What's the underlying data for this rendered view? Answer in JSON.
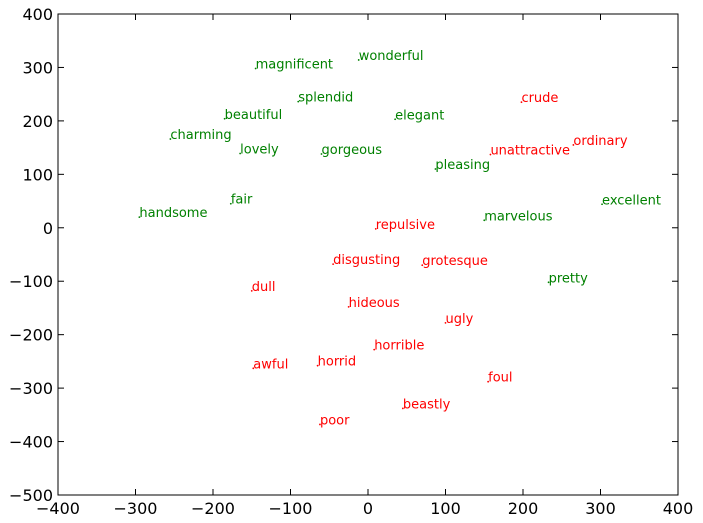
{
  "chart_data": {
    "type": "scatter",
    "title": "",
    "xlabel": "",
    "ylabel": "",
    "xlim": [
      -400,
      400
    ],
    "ylim": [
      -500,
      400
    ],
    "xticks": [
      -400,
      -300,
      -200,
      -100,
      0,
      100,
      200,
      300,
      400
    ],
    "yticks": [
      -500,
      -400,
      -300,
      -200,
      -100,
      0,
      100,
      200,
      300,
      400
    ],
    "grid": false,
    "colors": {
      "positive": "#008000",
      "negative": "#ff0000"
    },
    "points": [
      {
        "label": "wonderful",
        "x": -12,
        "y": 314,
        "group": "positive"
      },
      {
        "label": "magnificent",
        "x": -145,
        "y": 298,
        "group": "positive"
      },
      {
        "label": "splendid",
        "x": -90,
        "y": 236,
        "group": "positive"
      },
      {
        "label": "beautiful",
        "x": -185,
        "y": 204,
        "group": "positive"
      },
      {
        "label": "elegant",
        "x": 35,
        "y": 203,
        "group": "positive"
      },
      {
        "label": "charming",
        "x": -255,
        "y": 166,
        "group": "positive"
      },
      {
        "label": "lovely",
        "x": -165,
        "y": 139,
        "group": "positive"
      },
      {
        "label": "gorgeous",
        "x": -60,
        "y": 138,
        "group": "positive"
      },
      {
        "label": "pleasing",
        "x": 87,
        "y": 110,
        "group": "positive"
      },
      {
        "label": "fair",
        "x": -177,
        "y": 45,
        "group": "positive"
      },
      {
        "label": "handsome",
        "x": -295,
        "y": 20,
        "group": "positive"
      },
      {
        "label": "marvelous",
        "x": 150,
        "y": 14,
        "group": "positive"
      },
      {
        "label": "excellent",
        "x": 302,
        "y": 44,
        "group": "positive"
      },
      {
        "label": "pretty",
        "x": 233,
        "y": -102,
        "group": "positive"
      },
      {
        "label": "crude",
        "x": 198,
        "y": 235,
        "group": "negative"
      },
      {
        "label": "ordinary",
        "x": 265,
        "y": 155,
        "group": "negative"
      },
      {
        "label": "unattractive",
        "x": 158,
        "y": 137,
        "group": "negative"
      },
      {
        "label": "repulsive",
        "x": 10,
        "y": -2,
        "group": "negative"
      },
      {
        "label": "disgusting",
        "x": -45,
        "y": -68,
        "group": "negative"
      },
      {
        "label": "grotesque",
        "x": 70,
        "y": -70,
        "group": "negative"
      },
      {
        "label": "dull",
        "x": -150,
        "y": -118,
        "group": "negative"
      },
      {
        "label": "hideous",
        "x": -25,
        "y": -148,
        "group": "negative"
      },
      {
        "label": "ugly",
        "x": 100,
        "y": -178,
        "group": "negative"
      },
      {
        "label": "horrible",
        "x": 8,
        "y": -228,
        "group": "negative"
      },
      {
        "label": "horrid",
        "x": -65,
        "y": -258,
        "group": "negative"
      },
      {
        "label": "awful",
        "x": -148,
        "y": -263,
        "group": "negative"
      },
      {
        "label": "foul",
        "x": 155,
        "y": -288,
        "group": "negative"
      },
      {
        "label": "beastly",
        "x": 45,
        "y": -338,
        "group": "negative"
      },
      {
        "label": "poor",
        "x": -62,
        "y": -368,
        "group": "negative"
      }
    ]
  }
}
